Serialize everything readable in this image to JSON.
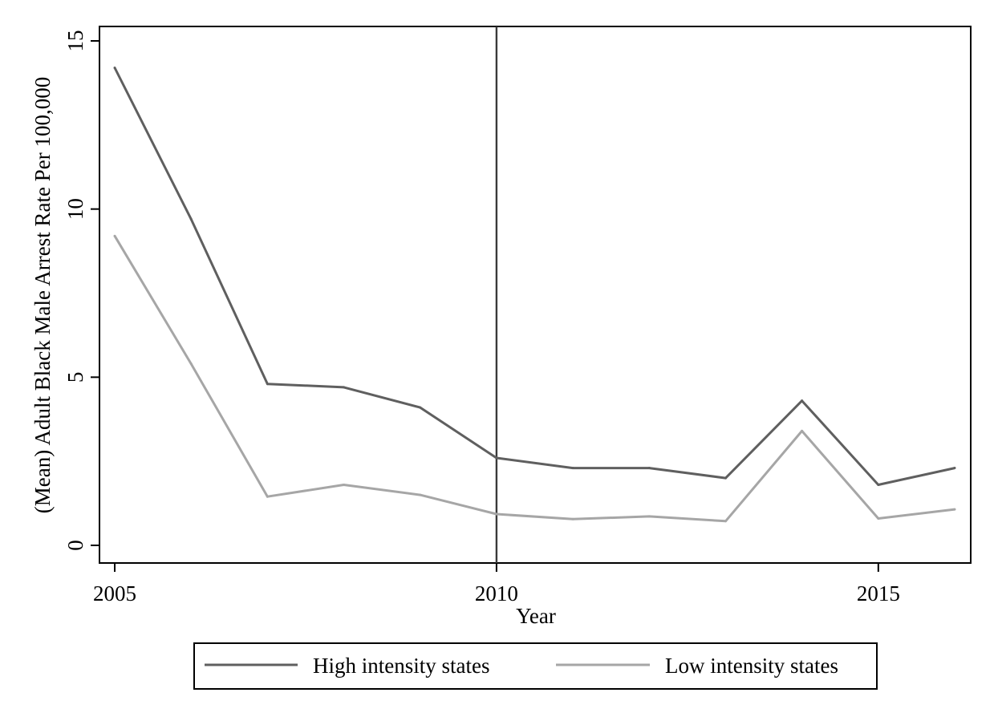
{
  "chart_data": {
    "type": "line",
    "xlabel": "Year",
    "ylabel": "(Mean) Adult Black Male Arrest Rate Per 100,000",
    "xlim": [
      2005,
      2016
    ],
    "ylim": [
      0,
      15
    ],
    "x_ticks": [
      2005,
      2010,
      2015
    ],
    "y_ticks": [
      0,
      5,
      10,
      15
    ],
    "x_tick_labels": [
      "2005",
      "2010",
      "2015"
    ],
    "y_tick_labels": [
      "0",
      "5",
      "10",
      "15"
    ],
    "x": [
      2005,
      2006,
      2007,
      2008,
      2009,
      2010,
      2011,
      2012,
      2013,
      2014,
      2015,
      2016
    ],
    "series": [
      {
        "name": "High intensity states",
        "color": "#5f5f5f",
        "values": [
          14.2,
          9.7,
          4.8,
          4.7,
          4.1,
          2.6,
          2.3,
          2.3,
          2.0,
          4.3,
          1.8,
          2.3
        ]
      },
      {
        "name": "Low intensity states",
        "color": "#a6a6a6",
        "values": [
          9.2,
          5.4,
          1.45,
          1.8,
          1.5,
          0.93,
          0.78,
          0.86,
          0.72,
          3.4,
          0.8,
          1.07
        ]
      }
    ],
    "reference_line": {
      "x": 2010,
      "color": "#3a3a3a"
    },
    "grid": false,
    "legend_position": "bottom"
  }
}
